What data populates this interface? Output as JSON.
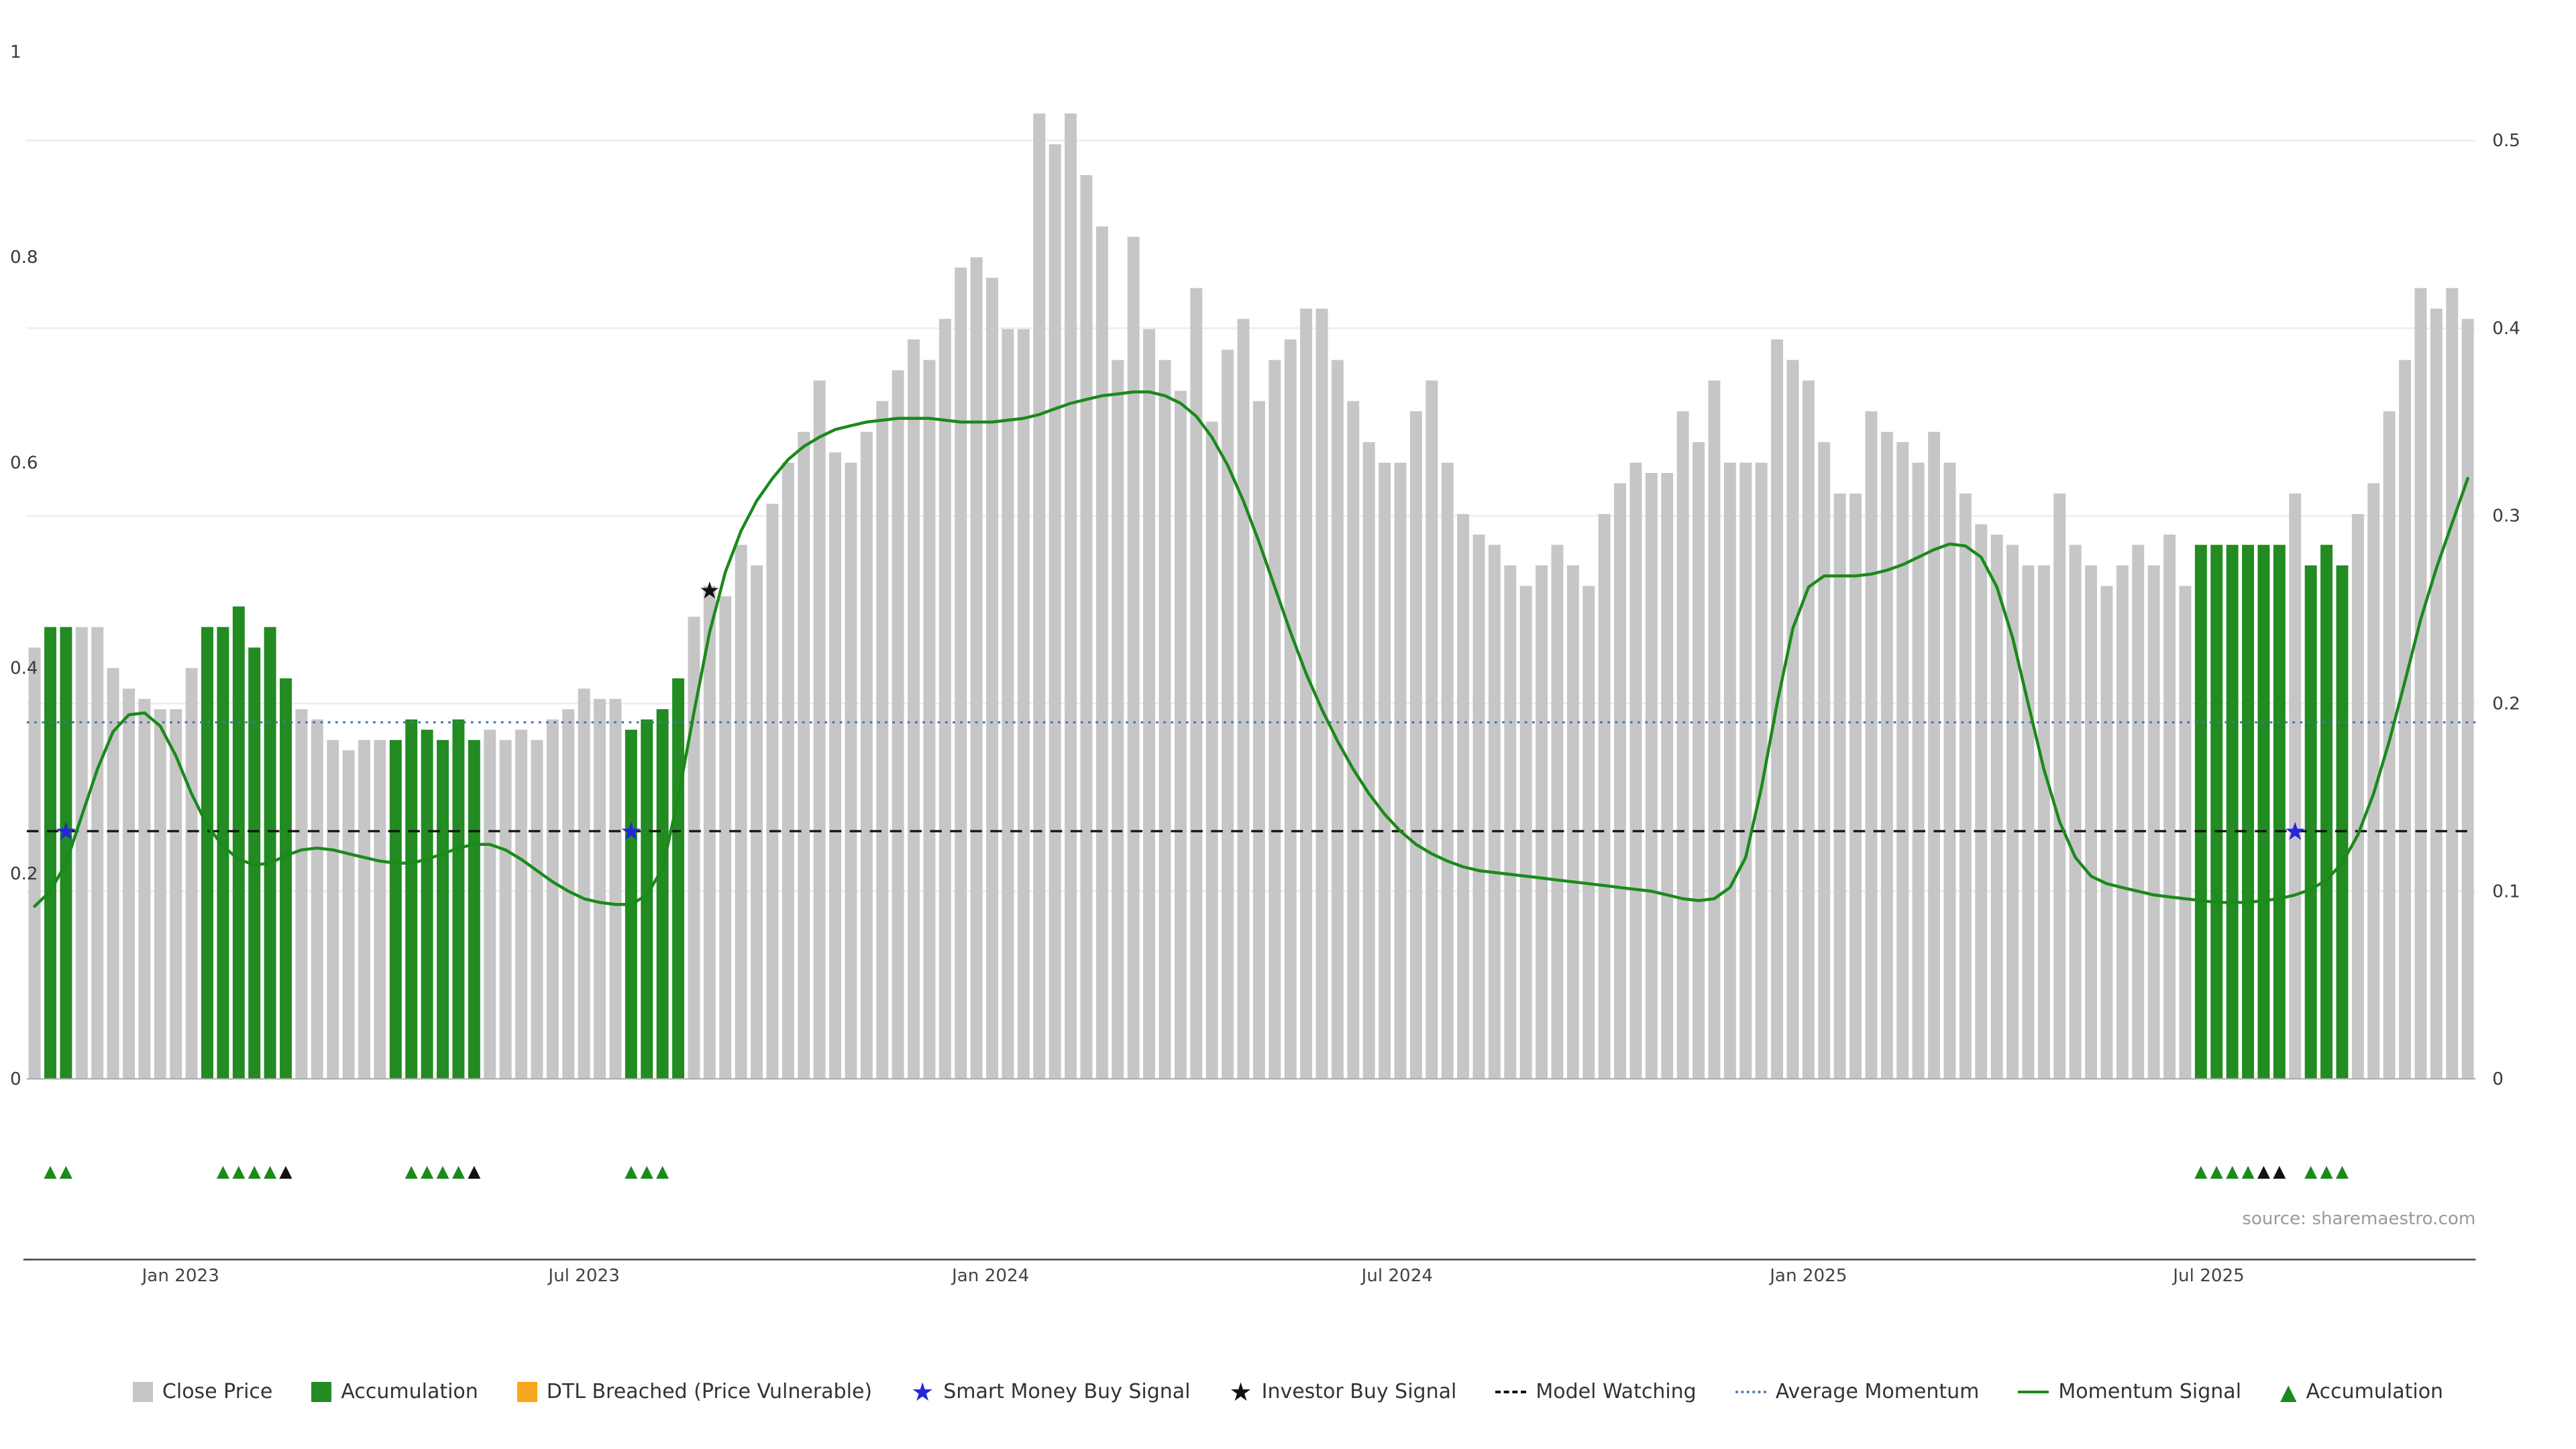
{
  "source": "source: sharemaestro.com",
  "chart_data": {
    "type": "bar",
    "title": "",
    "y_axis_left": {
      "ticks": [
        "0",
        "0.2",
        "0.4",
        "0.6",
        "0.8",
        "1"
      ],
      "range": [
        0,
        1
      ]
    },
    "y_axis_right": {
      "ticks": [
        "0",
        "0.1",
        "0.2",
        "0.3",
        "0.4",
        "0.5"
      ],
      "range": [
        0,
        0.5
      ]
    },
    "x_ticks": [
      {
        "label": "Jan 2023",
        "index": 9.3
      },
      {
        "label": "Jul 2023",
        "index": 35.0
      },
      {
        "label": "Jan 2024",
        "index": 60.9
      },
      {
        "label": "Jul 2024",
        "index": 86.8
      },
      {
        "label": "Jan 2025",
        "index": 113.0
      },
      {
        "label": "Jul 2025",
        "index": 138.5
      }
    ],
    "close_price_bars": [
      0.42,
      0.44,
      0.44,
      0.44,
      0.44,
      0.4,
      0.38,
      0.37,
      0.36,
      0.36,
      0.4,
      0.44,
      0.44,
      0.46,
      0.42,
      0.44,
      0.39,
      0.36,
      0.35,
      0.33,
      0.32,
      0.33,
      0.33,
      0.33,
      0.35,
      0.34,
      0.33,
      0.35,
      0.33,
      0.34,
      0.33,
      0.34,
      0.33,
      0.35,
      0.36,
      0.38,
      0.37,
      0.37,
      0.34,
      0.35,
      0.36,
      0.39,
      0.45,
      0.48,
      0.47,
      0.52,
      0.5,
      0.56,
      0.6,
      0.63,
      0.68,
      0.61,
      0.6,
      0.63,
      0.66,
      0.69,
      0.72,
      0.7,
      0.74,
      0.79,
      0.8,
      0.78,
      0.73,
      0.73,
      0.94,
      0.91,
      0.94,
      0.88,
      0.83,
      0.7,
      0.82,
      0.73,
      0.7,
      0.67,
      0.77,
      0.64,
      0.71,
      0.74,
      0.66,
      0.7,
      0.72,
      0.75,
      0.75,
      0.7,
      0.66,
      0.62,
      0.6,
      0.6,
      0.65,
      0.68,
      0.6,
      0.55,
      0.53,
      0.52,
      0.5,
      0.48,
      0.5,
      0.52,
      0.5,
      0.48,
      0.55,
      0.58,
      0.6,
      0.59,
      0.59,
      0.65,
      0.62,
      0.68,
      0.6,
      0.6,
      0.6,
      0.72,
      0.7,
      0.68,
      0.62,
      0.57,
      0.57,
      0.65,
      0.63,
      0.62,
      0.6,
      0.63,
      0.6,
      0.57,
      0.54,
      0.53,
      0.52,
      0.5,
      0.5,
      0.57,
      0.52,
      0.5,
      0.48,
      0.5,
      0.52,
      0.5,
      0.53,
      0.48,
      0.52,
      0.52,
      0.52,
      0.52,
      0.52,
      0.52,
      0.57,
      0.5,
      0.52,
      0.5,
      0.55,
      0.58,
      0.65,
      0.7,
      0.77,
      0.75,
      0.77,
      0.74
    ],
    "accumulation_indices": [
      1,
      2,
      11,
      12,
      13,
      14,
      15,
      16,
      23,
      24,
      25,
      26,
      27,
      28,
      38,
      39,
      40,
      41,
      138,
      139,
      140,
      141,
      142,
      143,
      145,
      146,
      147
    ],
    "momentum_signal": [
      0.092,
      0.1,
      0.115,
      0.14,
      0.165,
      0.185,
      0.194,
      0.195,
      0.188,
      0.172,
      0.152,
      0.135,
      0.124,
      0.117,
      0.114,
      0.115,
      0.119,
      0.122,
      0.123,
      0.122,
      0.12,
      0.118,
      0.116,
      0.115,
      0.115,
      0.117,
      0.12,
      0.123,
      0.125,
      0.125,
      0.122,
      0.117,
      0.111,
      0.105,
      0.1,
      0.096,
      0.094,
      0.093,
      0.093,
      0.098,
      0.112,
      0.15,
      0.195,
      0.238,
      0.27,
      0.292,
      0.308,
      0.32,
      0.33,
      0.337,
      0.342,
      0.346,
      0.348,
      0.35,
      0.351,
      0.352,
      0.352,
      0.352,
      0.351,
      0.35,
      0.35,
      0.35,
      0.351,
      0.352,
      0.354,
      0.357,
      0.36,
      0.362,
      0.364,
      0.365,
      0.366,
      0.366,
      0.364,
      0.36,
      0.353,
      0.342,
      0.327,
      0.308,
      0.286,
      0.262,
      0.238,
      0.216,
      0.197,
      0.18,
      0.165,
      0.152,
      0.141,
      0.132,
      0.125,
      0.12,
      0.116,
      0.113,
      0.111,
      0.11,
      0.109,
      0.108,
      0.107,
      0.106,
      0.105,
      0.104,
      0.103,
      0.102,
      0.101,
      0.1,
      0.098,
      0.096,
      0.095,
      0.096,
      0.102,
      0.118,
      0.155,
      0.2,
      0.24,
      0.262,
      0.268,
      0.268,
      0.268,
      0.269,
      0.271,
      0.274,
      0.278,
      0.282,
      0.285,
      0.284,
      0.278,
      0.262,
      0.235,
      0.2,
      0.165,
      0.137,
      0.118,
      0.108,
      0.104,
      0.102,
      0.1,
      0.098,
      0.097,
      0.096,
      0.095,
      0.094,
      0.094,
      0.094,
      0.095,
      0.096,
      0.098,
      0.101,
      0.106,
      0.115,
      0.13,
      0.152,
      0.18,
      0.212,
      0.245,
      0.272,
      0.296,
      0.32
    ],
    "average_momentum_level": 0.19,
    "model_watching_level": 0.132,
    "smart_money_buy_signals": [
      {
        "index": 2,
        "value": 0.132
      },
      {
        "index": 38,
        "value": 0.132
      },
      {
        "index": 144,
        "value": 0.132
      }
    ],
    "investor_buy_signals": [
      {
        "index": 43,
        "value": 0.26
      }
    ],
    "accumulation_markers": [
      {
        "index": 1,
        "color": "green"
      },
      {
        "index": 2,
        "color": "green"
      },
      {
        "index": 12,
        "color": "green"
      },
      {
        "index": 13,
        "color": "green"
      },
      {
        "index": 14,
        "color": "green"
      },
      {
        "index": 15,
        "color": "green"
      },
      {
        "index": 16,
        "color": "black"
      },
      {
        "index": 24,
        "color": "green"
      },
      {
        "index": 25,
        "color": "green"
      },
      {
        "index": 26,
        "color": "green"
      },
      {
        "index": 27,
        "color": "green"
      },
      {
        "index": 28,
        "color": "black"
      },
      {
        "index": 38,
        "color": "green"
      },
      {
        "index": 39,
        "color": "green"
      },
      {
        "index": 40,
        "color": "green"
      },
      {
        "index": 138,
        "color": "green"
      },
      {
        "index": 139,
        "color": "green"
      },
      {
        "index": 140,
        "color": "green"
      },
      {
        "index": 141,
        "color": "green"
      },
      {
        "index": 142,
        "color": "black"
      },
      {
        "index": 143,
        "color": "black"
      },
      {
        "index": 145,
        "color": "green"
      },
      {
        "index": 146,
        "color": "green"
      },
      {
        "index": 147,
        "color": "green"
      }
    ],
    "colors": {
      "close_price": "#c6c6c6",
      "accumulation": "#228b22",
      "momentum_line": "#1a8a1a",
      "smart_money": "#2626d8",
      "investor": "#111111",
      "model_watching": "#111111",
      "average_momentum": "#4a72b0",
      "dtl_breached": "#f5a81c",
      "grid": "#ececec",
      "axis_line": "#444444",
      "baseline": "#aaaaaa"
    }
  },
  "legend": {
    "items": [
      {
        "label": "Close Price",
        "swatch": "square",
        "color": "#c6c6c6"
      },
      {
        "label": "Accumulation",
        "swatch": "square",
        "color": "#228b22"
      },
      {
        "label": "DTL Breached (Price Vulnerable)",
        "swatch": "square",
        "color": "#f5a81c"
      },
      {
        "label": "Smart Money Buy Signal",
        "swatch": "star",
        "color": "#2626d8"
      },
      {
        "label": "Investor Buy Signal",
        "swatch": "star",
        "color": "#111111"
      },
      {
        "label": "Model Watching",
        "swatch": "dashed-line",
        "color": "#111111"
      },
      {
        "label": "Average Momentum",
        "swatch": "dotted-line",
        "color": "#4a72b0"
      },
      {
        "label": "Momentum Signal",
        "swatch": "line",
        "color": "#1a8a1a"
      },
      {
        "label": "Accumulation",
        "swatch": "triangle",
        "color": "#1a8a1a"
      }
    ]
  }
}
